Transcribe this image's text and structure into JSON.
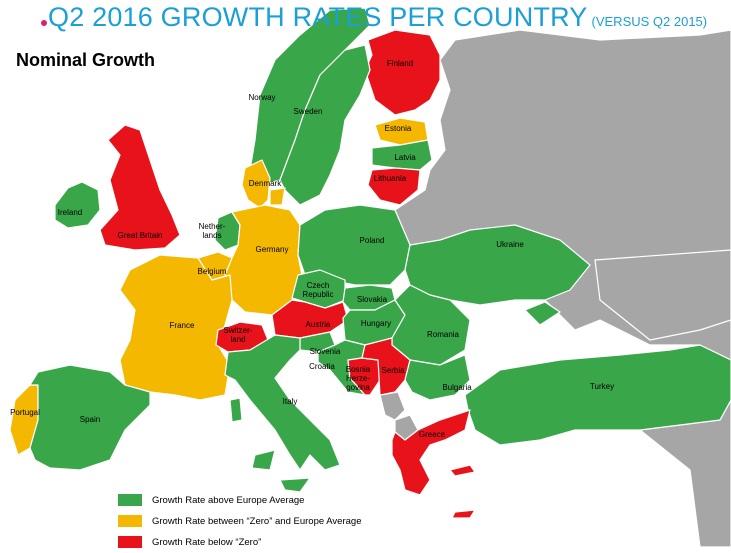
{
  "title": {
    "main": "Q2 2016 GROWTH RATES PER COUNTRY",
    "sub": "(VERSUS Q2 2015)"
  },
  "subtitle": "Nominal Growth",
  "colors": {
    "above": "#3aa64a",
    "between": "#f5b800",
    "below": "#e8121b",
    "non_eu": "#a6a6a6",
    "sea": "#ffffff",
    "border": "#ffffff",
    "title": "#1a9fd6"
  },
  "countries": [
    {
      "label": "Finland",
      "status": "below"
    },
    {
      "label": "Norway",
      "status": "above"
    },
    {
      "label": "Sweden",
      "status": "above"
    },
    {
      "label": "Estonia",
      "status": "between"
    },
    {
      "label": "Latvia",
      "status": "above"
    },
    {
      "label": "Lithuania",
      "status": "below"
    },
    {
      "label": "Denmark",
      "status": "between"
    },
    {
      "label": "Ireland",
      "status": "above"
    },
    {
      "label": "Great Britain",
      "status": "below"
    },
    {
      "label": "Nether-\nlands",
      "status": "above"
    },
    {
      "label": "Belgium",
      "status": "between"
    },
    {
      "label": "Germany",
      "status": "between"
    },
    {
      "label": "Poland",
      "status": "above"
    },
    {
      "label": "Ukraine",
      "status": "above"
    },
    {
      "label": "Czech\nRepublic",
      "status": "above"
    },
    {
      "label": "Slovakia",
      "status": "above"
    },
    {
      "label": "France",
      "status": "between"
    },
    {
      "label": "Switzer-\nland",
      "status": "below"
    },
    {
      "label": "Austria",
      "status": "below"
    },
    {
      "label": "Hungary",
      "status": "above"
    },
    {
      "label": "Romania",
      "status": "above"
    },
    {
      "label": "Slovenia",
      "status": "above"
    },
    {
      "label": "Croatia",
      "status": "above"
    },
    {
      "label": "Bosnia\nHerze-\ngovina",
      "status": "below"
    },
    {
      "label": "Serbia",
      "status": "below"
    },
    {
      "label": "Bulgaria",
      "status": "above"
    },
    {
      "label": "Turkey",
      "status": "above"
    },
    {
      "label": "Portugal",
      "status": "between"
    },
    {
      "label": "Spain",
      "status": "above"
    },
    {
      "label": "Italy",
      "status": "above"
    },
    {
      "label": "Greece",
      "status": "below"
    }
  ],
  "legend": [
    {
      "status": "above",
      "label": "Growth Rate above Europe Average"
    },
    {
      "status": "between",
      "label": "Growth Rate between “Zero” and Europe Average"
    },
    {
      "status": "below",
      "label": "Growth Rate below “Zero”"
    }
  ]
}
